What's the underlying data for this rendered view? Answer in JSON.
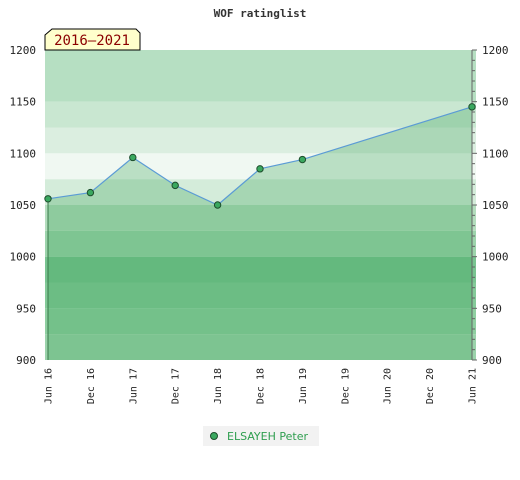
{
  "chart_data": {
    "type": "area",
    "title": "WOF ratinglist",
    "period_label": "2016–2021",
    "x_categories": [
      "Jun 16",
      "Dec 16",
      "Jun 17",
      "Dec 17",
      "Jun 18",
      "Dec 18",
      "Jun 19",
      "Dec 19",
      "Jun 20",
      "Dec 20",
      "Jun 21"
    ],
    "ylim": [
      900,
      1200
    ],
    "y_ticks": [
      900,
      950,
      1000,
      1050,
      1100,
      1150,
      1200
    ],
    "series": [
      {
        "name": "ELSAYEH Peter",
        "points": [
          {
            "x": "Jun 16",
            "y": 1056
          },
          {
            "x": "Dec 16",
            "y": 1062
          },
          {
            "x": "Jun 17",
            "y": 1096
          },
          {
            "x": "Dec 17",
            "y": 1069
          },
          {
            "x": "Jun 18",
            "y": 1050
          },
          {
            "x": "Dec 18",
            "y": 1085
          },
          {
            "x": "Jun 19",
            "y": 1094
          },
          {
            "x": "Jun 21",
            "y": 1145
          }
        ]
      }
    ],
    "band_colors": [
      "#9bd3ab",
      "#8fcfa1",
      "#84ca99",
      "#79c491",
      "#9dd4ac",
      "#b3ddbd",
      "#d4ecda",
      "#f0f8f2",
      "#dbeee0",
      "#c9e7d1",
      "#b6dfc2"
    ],
    "legend_position": "bottom-center",
    "grid": false
  }
}
